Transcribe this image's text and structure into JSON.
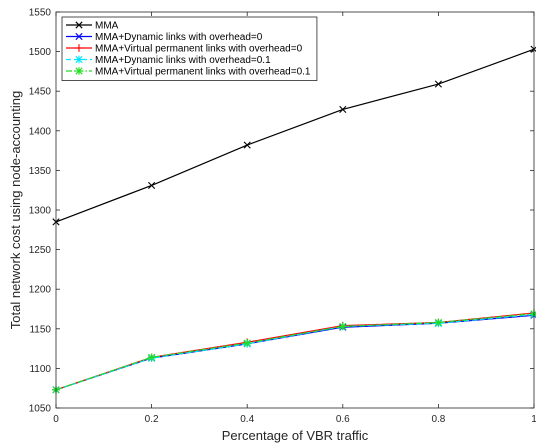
{
  "chart_data": {
    "type": "line",
    "xlabel": "Percentage of VBR traffic",
    "ylabel": "Total network cost using node-accounting",
    "xlim": [
      0,
      1
    ],
    "ylim": [
      1050,
      1550
    ],
    "xticks": [
      "0",
      "0.2",
      "0.4",
      "0.6",
      "0.8",
      "1"
    ],
    "yticks": [
      "1050",
      "1100",
      "1150",
      "1200",
      "1250",
      "1300",
      "1350",
      "1400",
      "1450",
      "1500",
      "1550"
    ],
    "x": [
      0,
      0.2,
      0.4,
      0.6,
      0.8,
      1.0
    ],
    "grid": false,
    "legend_position": "top-left",
    "series": [
      {
        "name": "MMA",
        "color": "#000000",
        "marker": "x",
        "line": "solid",
        "values": [
          1285,
          1331,
          1382,
          1427,
          1459,
          1503
        ]
      },
      {
        "name": "MMA+Dynamic links with overhead=0",
        "color": "#0000ff",
        "marker": "x",
        "line": "solid",
        "values": [
          1073,
          1113,
          1131,
          1152,
          1157,
          1167
        ]
      },
      {
        "name": "MMA+Virtual permanent links with overhead=0",
        "color": "#ff0000",
        "marker": "plus",
        "line": "solid",
        "values": [
          1073,
          1114,
          1133,
          1154,
          1158,
          1170
        ]
      },
      {
        "name": "MMA+Dynamic links with overhead=0.1",
        "color": "#00e5ff",
        "marker": "star",
        "line": "dashed",
        "values": [
          1073,
          1113,
          1131,
          1153,
          1157,
          1168
        ]
      },
      {
        "name": "MMA+Virtual permanent links with overhead=0.1",
        "color": "#22dd22",
        "marker": "star",
        "line": "dashdot",
        "values": [
          1073,
          1114,
          1132,
          1153,
          1158,
          1169
        ]
      }
    ]
  }
}
